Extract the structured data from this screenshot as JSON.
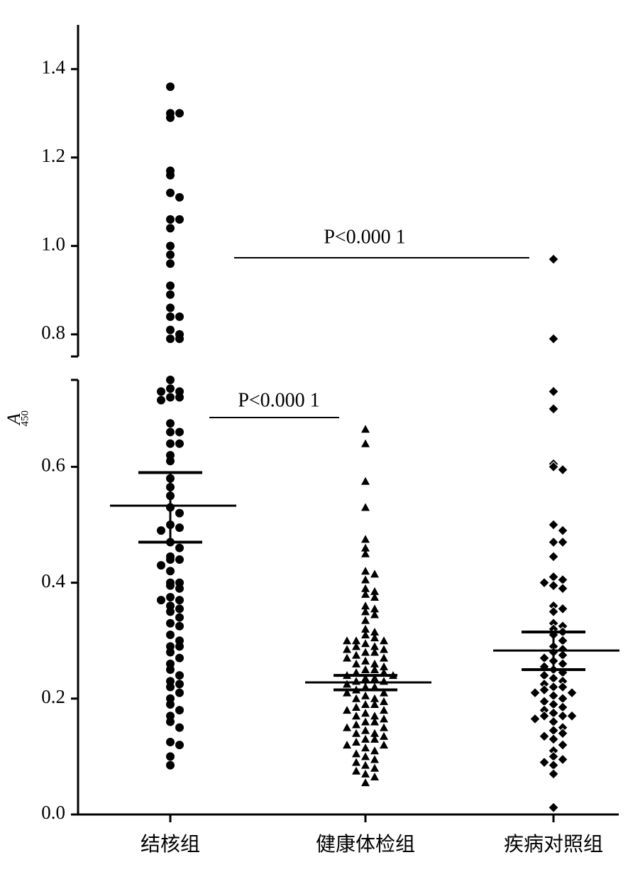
{
  "chart_data": {
    "type": "scatter",
    "y_label": "A",
    "y_label_subscript": "450",
    "color": "#000000",
    "broken_axis": {
      "lower": [
        0,
        0.75
      ],
      "upper": [
        0.75,
        1.5
      ]
    },
    "yticks": [
      {
        "value": 0,
        "label": "0.0"
      },
      0.2,
      0.4,
      0.6,
      0.8,
      {
        "value": 1,
        "label": "1.0"
      },
      1.2,
      1.4
    ],
    "categories": [
      "结核组",
      "健康体检组",
      "疾病对照组"
    ],
    "groups": [
      {
        "marker": "circle",
        "mean": 0.533,
        "sem_range": [
          0.47,
          0.59
        ],
        "values": [
          1.36,
          1.3,
          1.29,
          1.3,
          1.17,
          1.16,
          1.12,
          1.11,
          1.06,
          1.06,
          1.04,
          1.0,
          0.98,
          0.96,
          0.91,
          0.89,
          0.86,
          0.84,
          0.84,
          0.81,
          0.8,
          0.79,
          0.79,
          0.75,
          0.735,
          0.73,
          0.73,
          0.72,
          0.72,
          0.715,
          0.675,
          0.66,
          0.66,
          0.64,
          0.64,
          0.62,
          0.61,
          0.58,
          0.565,
          0.55,
          0.53,
          0.52,
          0.5,
          0.495,
          0.49,
          0.47,
          0.46,
          0.445,
          0.44,
          0.44,
          0.43,
          0.42,
          0.4,
          0.4,
          0.395,
          0.39,
          0.375,
          0.37,
          0.37,
          0.36,
          0.355,
          0.35,
          0.34,
          0.33,
          0.325,
          0.31,
          0.3,
          0.29,
          0.29,
          0.28,
          0.27,
          0.26,
          0.25,
          0.24,
          0.23,
          0.225,
          0.22,
          0.21,
          0.2,
          0.19,
          0.18,
          0.17,
          0.16,
          0.15,
          0.125,
          0.12,
          0.1,
          0.085
        ]
      },
      {
        "marker": "triangle",
        "mean": 0.228,
        "sem_range": [
          0.215,
          0.24
        ],
        "values": [
          0.665,
          0.64,
          0.575,
          0.53,
          0.475,
          0.46,
          0.45,
          0.42,
          0.415,
          0.405,
          0.39,
          0.385,
          0.38,
          0.375,
          0.36,
          0.355,
          0.35,
          0.345,
          0.335,
          0.32,
          0.315,
          0.31,
          0.305,
          0.3,
          0.3,
          0.3,
          0.295,
          0.29,
          0.29,
          0.285,
          0.285,
          0.28,
          0.28,
          0.275,
          0.27,
          0.27,
          0.265,
          0.26,
          0.26,
          0.255,
          0.25,
          0.25,
          0.245,
          0.245,
          0.24,
          0.24,
          0.235,
          0.235,
          0.23,
          0.23,
          0.225,
          0.22,
          0.22,
          0.215,
          0.21,
          0.21,
          0.205,
          0.2,
          0.2,
          0.195,
          0.19,
          0.19,
          0.185,
          0.18,
          0.18,
          0.175,
          0.17,
          0.17,
          0.165,
          0.16,
          0.16,
          0.155,
          0.15,
          0.15,
          0.145,
          0.14,
          0.14,
          0.135,
          0.13,
          0.13,
          0.125,
          0.12,
          0.12,
          0.115,
          0.11,
          0.105,
          0.1,
          0.095,
          0.09,
          0.085,
          0.08,
          0.075,
          0.07,
          0.065,
          0.055
        ]
      },
      {
        "marker": "diamond",
        "mean": 0.283,
        "sem_range": [
          0.25,
          0.315
        ],
        "values": [
          0.97,
          0.79,
          0.73,
          0.7,
          0.605,
          0.6,
          0.595,
          0.5,
          0.49,
          0.47,
          0.47,
          0.445,
          0.41,
          0.405,
          0.4,
          0.395,
          0.39,
          0.36,
          0.355,
          0.35,
          0.33,
          0.325,
          0.32,
          0.315,
          0.31,
          0.3,
          0.29,
          0.285,
          0.28,
          0.275,
          0.27,
          0.265,
          0.26,
          0.255,
          0.25,
          0.245,
          0.24,
          0.235,
          0.23,
          0.225,
          0.22,
          0.22,
          0.215,
          0.21,
          0.21,
          0.205,
          0.2,
          0.195,
          0.19,
          0.185,
          0.18,
          0.175,
          0.17,
          0.17,
          0.17,
          0.165,
          0.16,
          0.15,
          0.145,
          0.14,
          0.135,
          0.13,
          0.12,
          0.11,
          0.1,
          0.095,
          0.09,
          0.085,
          0.07,
          0.012
        ]
      }
    ],
    "annotations": [
      "P<0.000 1",
      "P<0.000 1"
    ]
  }
}
